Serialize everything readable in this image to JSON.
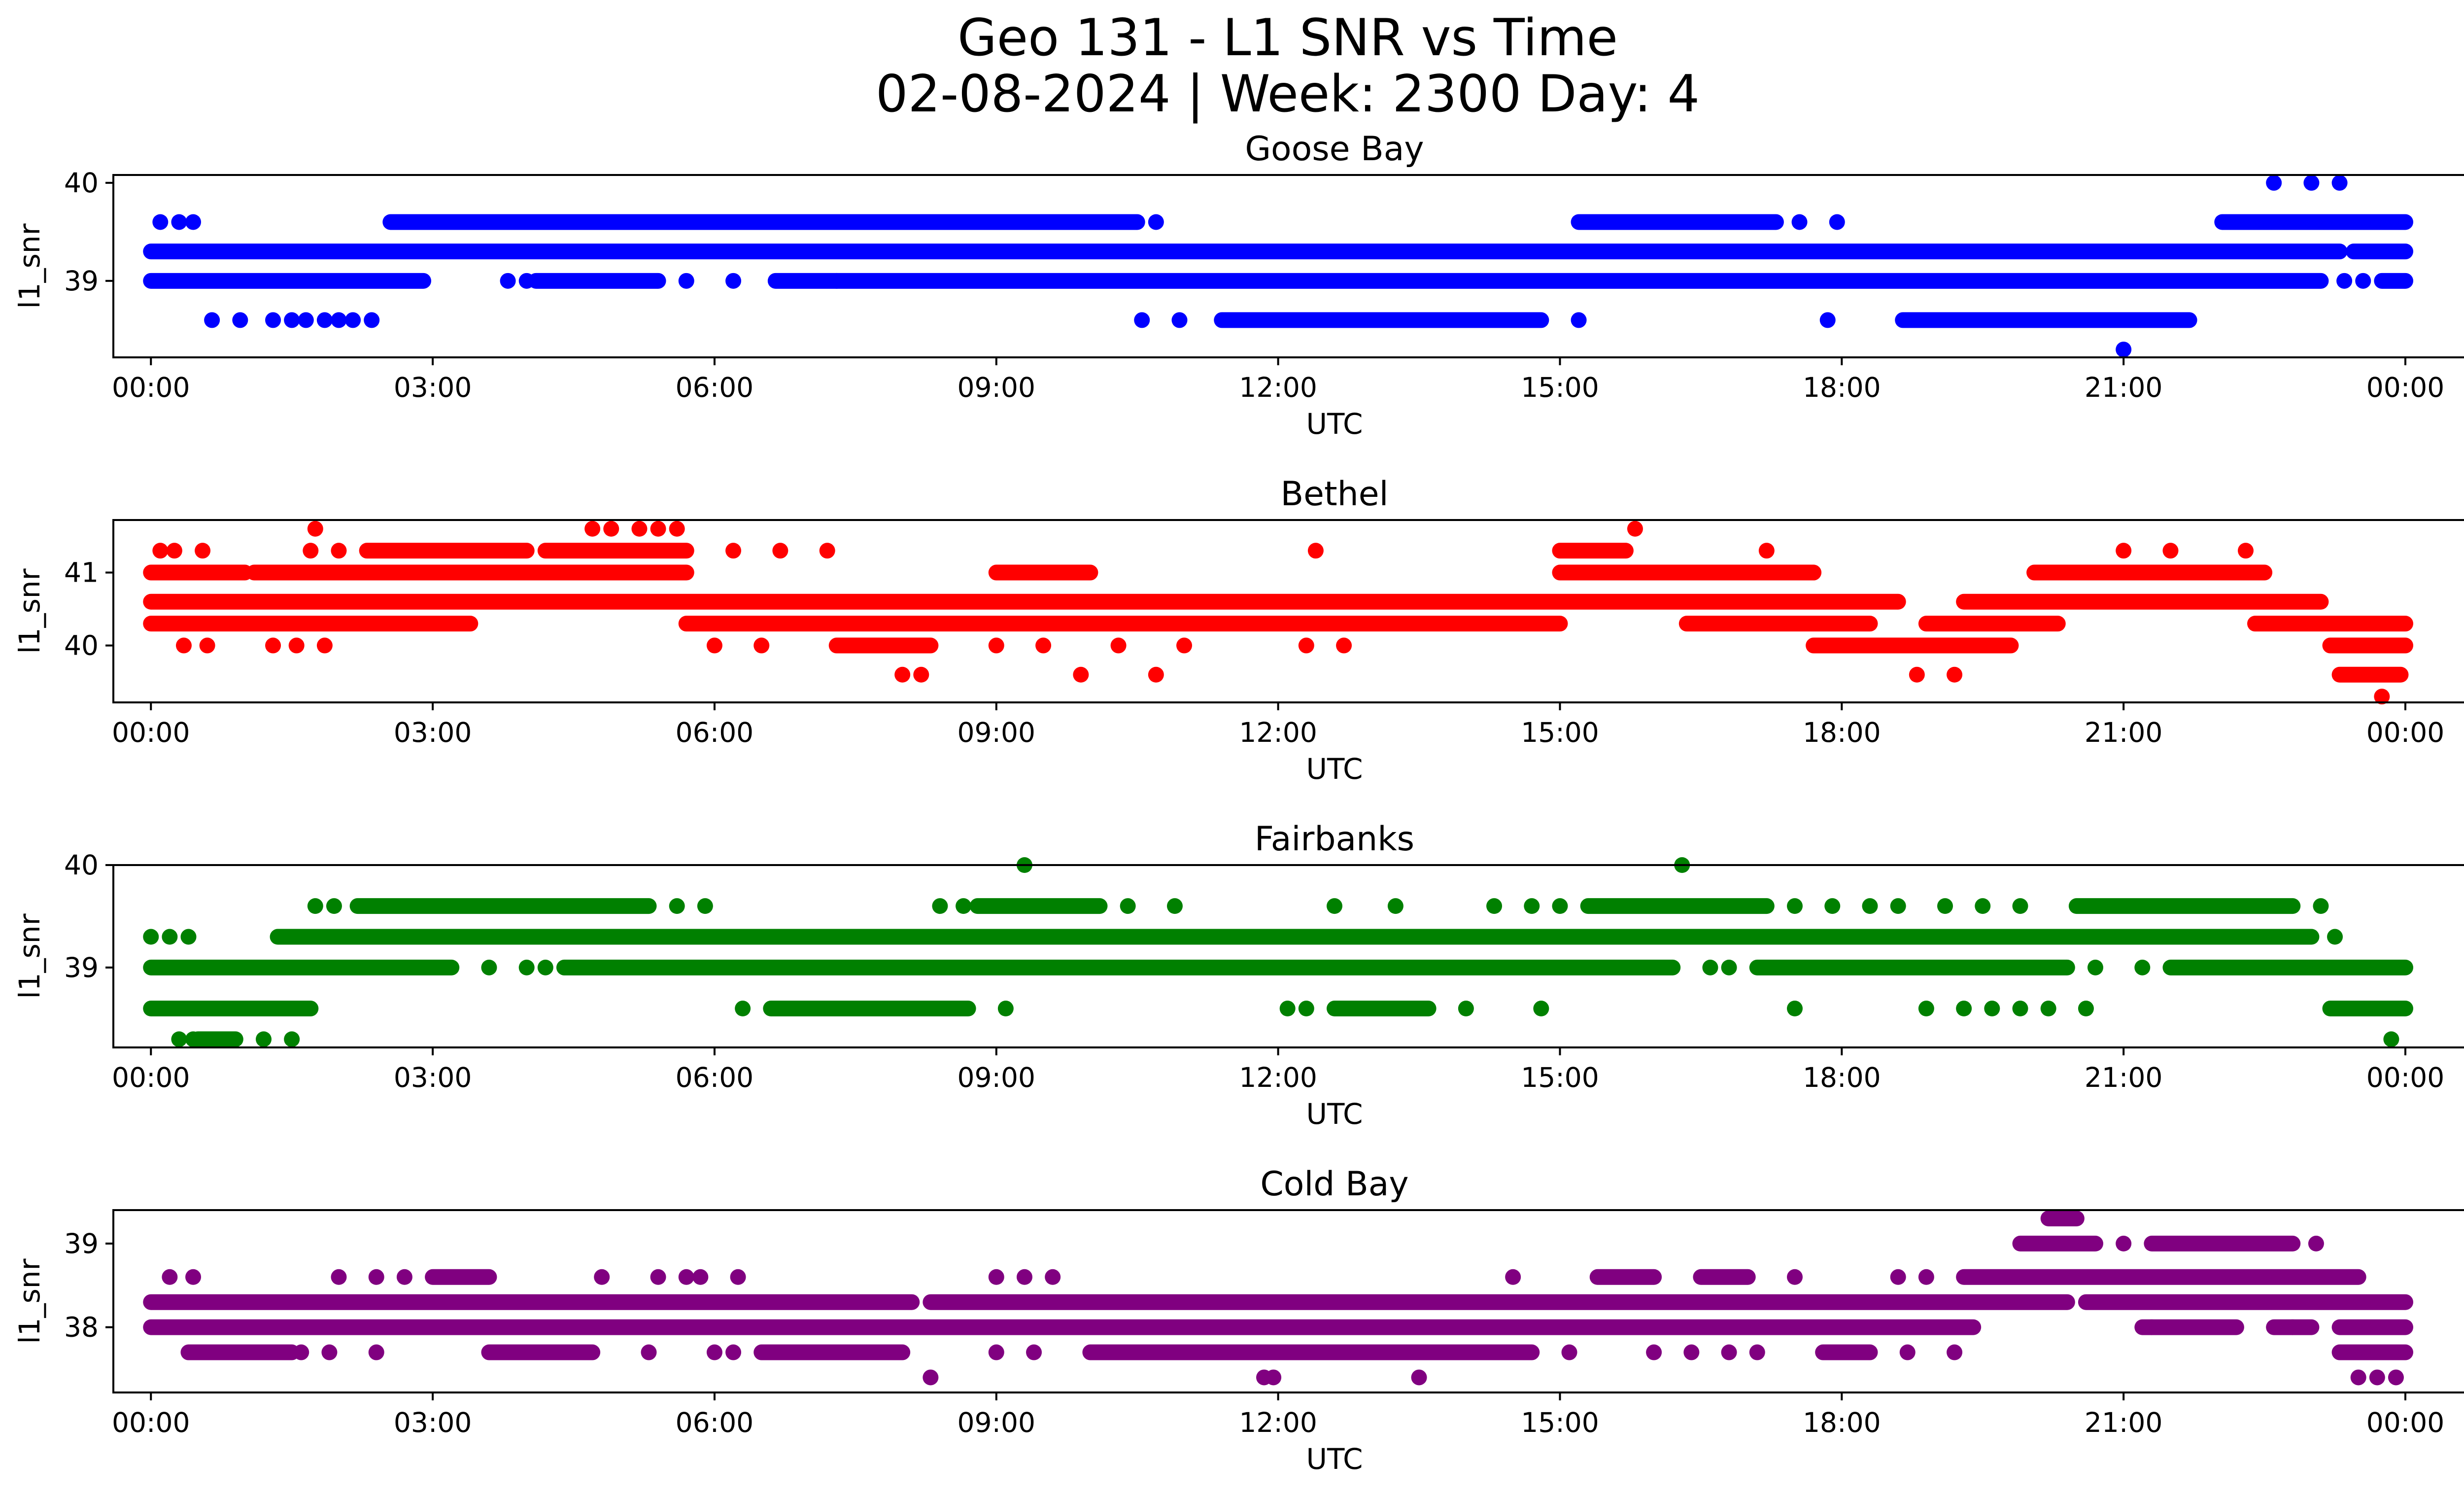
{
  "title": "Geo 131 - L1 SNR vs Time",
  "subtitle": "02-08-2024 | Week: 2300 Day: 4",
  "chart_data": [
    {
      "type": "scatter",
      "title": "Goose Bay",
      "color": "#0000ff",
      "xlabel": "UTC",
      "ylabel": "l1_snr",
      "xlim": [
        -0.4,
        25.6
      ],
      "ylim": [
        38.22,
        40.08
      ],
      "xticks": [
        0,
        3,
        6,
        9,
        12,
        15,
        18,
        21,
        24
      ],
      "xticklabels": [
        "00:00",
        "03:00",
        "06:00",
        "09:00",
        "12:00",
        "15:00",
        "18:00",
        "21:00",
        "00:00"
      ],
      "yticks": [
        39,
        40
      ],
      "yticklabels": [
        "39",
        "40"
      ],
      "bands": [
        {
          "y": 39.3,
          "segments": [
            [
              0,
              23.3
            ],
            [
              23.45,
              24
            ]
          ]
        },
        {
          "y": 39.6,
          "segments": [
            [
              2.55,
              10.5
            ],
            [
              15.2,
              17.3
            ],
            [
              22.05,
              24
            ]
          ]
        },
        {
          "y": 39.0,
          "segments": [
            [
              0,
              2.9
            ],
            [
              4.1,
              5.4
            ],
            [
              6.65,
              23.1
            ],
            [
              23.75,
              24
            ]
          ]
        },
        {
          "y": 38.6,
          "segments": [
            [
              11.4,
              14.8
            ],
            [
              18.65,
              21.7
            ]
          ]
        }
      ],
      "points": [
        {
          "x": 0.1,
          "y": 39.6
        },
        {
          "x": 0.3,
          "y": 39.6
        },
        {
          "x": 0.45,
          "y": 39.6
        },
        {
          "x": 10.7,
          "y": 39.6
        },
        {
          "x": 17.55,
          "y": 39.6
        },
        {
          "x": 17.95,
          "y": 39.6
        },
        {
          "x": 3.8,
          "y": 39.0
        },
        {
          "x": 4.0,
          "y": 39.0
        },
        {
          "x": 5.7,
          "y": 39.0
        },
        {
          "x": 6.2,
          "y": 39.0
        },
        {
          "x": 7.3,
          "y": 39.0
        },
        {
          "x": 23.35,
          "y": 39.0
        },
        {
          "x": 23.55,
          "y": 39.0
        },
        {
          "x": 0.65,
          "y": 38.6
        },
        {
          "x": 0.95,
          "y": 38.6
        },
        {
          "x": 1.3,
          "y": 38.6
        },
        {
          "x": 1.5,
          "y": 38.6
        },
        {
          "x": 1.65,
          "y": 38.6
        },
        {
          "x": 1.85,
          "y": 38.6
        },
        {
          "x": 2.0,
          "y": 38.6
        },
        {
          "x": 2.15,
          "y": 38.6
        },
        {
          "x": 2.35,
          "y": 38.6
        },
        {
          "x": 10.55,
          "y": 38.6
        },
        {
          "x": 10.95,
          "y": 38.6
        },
        {
          "x": 15.2,
          "y": 38.6
        },
        {
          "x": 17.85,
          "y": 38.6
        },
        {
          "x": 22.6,
          "y": 40.0
        },
        {
          "x": 23.0,
          "y": 40.0
        },
        {
          "x": 23.3,
          "y": 40.0
        },
        {
          "x": 21.0,
          "y": 38.3
        }
      ]
    },
    {
      "type": "scatter",
      "title": "Bethel",
      "color": "#ff0000",
      "xlabel": "UTC",
      "ylabel": "l1_snr",
      "xlim": [
        -0.4,
        25.6
      ],
      "ylim": [
        39.22,
        41.72
      ],
      "xticks": [
        0,
        3,
        6,
        9,
        12,
        15,
        18,
        21,
        24
      ],
      "xticklabels": [
        "00:00",
        "03:00",
        "06:00",
        "09:00",
        "12:00",
        "15:00",
        "18:00",
        "21:00",
        "00:00"
      ],
      "yticks": [
        40,
        41
      ],
      "yticklabels": [
        "40",
        "41"
      ],
      "bands": [
        {
          "y": 40.6,
          "segments": [
            [
              0,
              18.6
            ],
            [
              19.3,
              23.1
            ]
          ]
        },
        {
          "y": 41.0,
          "segments": [
            [
              0,
              1.0
            ],
            [
              1.1,
              5.7
            ],
            [
              9.0,
              10.0
            ],
            [
              15.0,
              17.7
            ],
            [
              20.05,
              22.5
            ]
          ]
        },
        {
          "y": 40.3,
          "segments": [
            [
              0,
              3.4
            ],
            [
              5.7,
              15.0
            ],
            [
              16.35,
              18.3
            ],
            [
              18.9,
              20.3
            ],
            [
              22.4,
              24
            ]
          ]
        },
        {
          "y": 41.3,
          "segments": [
            [
              2.3,
              4.0
            ],
            [
              4.2,
              5.7
            ],
            [
              15.0,
              15.7
            ]
          ]
        },
        {
          "y": 40.0,
          "segments": [
            [
              7.3,
              8.3
            ],
            [
              17.7,
              19.8
            ],
            [
              23.2,
              24
            ]
          ]
        },
        {
          "y": 39.6,
          "segments": [
            [
              23.3,
              23.95
            ]
          ]
        }
      ],
      "points": [
        {
          "x": 0.1,
          "y": 41.3
        },
        {
          "x": 0.25,
          "y": 41.3
        },
        {
          "x": 0.55,
          "y": 41.3
        },
        {
          "x": 1.7,
          "y": 41.3
        },
        {
          "x": 2.0,
          "y": 41.3
        },
        {
          "x": 6.2,
          "y": 41.3
        },
        {
          "x": 6.7,
          "y": 41.3
        },
        {
          "x": 7.2,
          "y": 41.3
        },
        {
          "x": 12.4,
          "y": 41.3
        },
        {
          "x": 17.2,
          "y": 41.3
        },
        {
          "x": 21.0,
          "y": 41.3
        },
        {
          "x": 21.5,
          "y": 41.3
        },
        {
          "x": 22.3,
          "y": 41.3
        },
        {
          "x": 1.75,
          "y": 41.6
        },
        {
          "x": 4.7,
          "y": 41.6
        },
        {
          "x": 4.9,
          "y": 41.6
        },
        {
          "x": 5.2,
          "y": 41.6
        },
        {
          "x": 5.4,
          "y": 41.6
        },
        {
          "x": 5.6,
          "y": 41.6
        },
        {
          "x": 15.8,
          "y": 41.6
        },
        {
          "x": 0.35,
          "y": 40.0
        },
        {
          "x": 0.6,
          "y": 40.0
        },
        {
          "x": 1.3,
          "y": 40.0
        },
        {
          "x": 1.55,
          "y": 40.0
        },
        {
          "x": 1.85,
          "y": 40.0
        },
        {
          "x": 6.0,
          "y": 40.0
        },
        {
          "x": 6.5,
          "y": 40.0
        },
        {
          "x": 9.0,
          "y": 40.0
        },
        {
          "x": 9.5,
          "y": 40.0
        },
        {
          "x": 10.3,
          "y": 40.0
        },
        {
          "x": 11.0,
          "y": 40.0
        },
        {
          "x": 12.3,
          "y": 40.0
        },
        {
          "x": 12.7,
          "y": 40.0
        },
        {
          "x": 8.0,
          "y": 39.6
        },
        {
          "x": 8.2,
          "y": 39.6
        },
        {
          "x": 9.9,
          "y": 39.6
        },
        {
          "x": 10.7,
          "y": 39.6
        },
        {
          "x": 18.8,
          "y": 39.6
        },
        {
          "x": 19.2,
          "y": 39.6
        },
        {
          "x": 23.75,
          "y": 39.3
        }
      ]
    },
    {
      "type": "scatter",
      "title": "Fairbanks",
      "color": "#008000",
      "xlabel": "UTC",
      "ylabel": "l1_snr",
      "xlim": [
        -0.4,
        25.6
      ],
      "ylim": [
        38.22,
        40.0
      ],
      "xticks": [
        0,
        3,
        6,
        9,
        12,
        15,
        18,
        21,
        24
      ],
      "xticklabels": [
        "00:00",
        "03:00",
        "06:00",
        "09:00",
        "12:00",
        "15:00",
        "18:00",
        "21:00",
        "00:00"
      ],
      "yticks": [
        39,
        40
      ],
      "yticklabels": [
        "39",
        "40"
      ],
      "bands": [
        {
          "y": 39.3,
          "segments": [
            [
              1.35,
              23.0
            ]
          ]
        },
        {
          "y": 39.0,
          "segments": [
            [
              0,
              3.2
            ],
            [
              4.4,
              16.2
            ],
            [
              17.1,
              20.4
            ],
            [
              21.5,
              24
            ]
          ]
        },
        {
          "y": 39.6,
          "segments": [
            [
              2.2,
              5.3
            ],
            [
              8.8,
              10.1
            ],
            [
              15.3,
              17.2
            ],
            [
              20.5,
              22.8
            ]
          ]
        },
        {
          "y": 38.6,
          "segments": [
            [
              0,
              1.7
            ],
            [
              6.6,
              8.7
            ],
            [
              12.6,
              13.6
            ],
            [
              23.2,
              24
            ]
          ]
        },
        {
          "y": 38.3,
          "segments": [
            [
              0.5,
              0.9
            ]
          ]
        }
      ],
      "points": [
        {
          "x": 0.0,
          "y": 39.3
        },
        {
          "x": 0.2,
          "y": 39.3
        },
        {
          "x": 0.4,
          "y": 39.3
        },
        {
          "x": 23.25,
          "y": 39.3
        },
        {
          "x": 1.75,
          "y": 39.6
        },
        {
          "x": 1.95,
          "y": 39.6
        },
        {
          "x": 5.6,
          "y": 39.6
        },
        {
          "x": 5.9,
          "y": 39.6
        },
        {
          "x": 8.4,
          "y": 39.6
        },
        {
          "x": 8.65,
          "y": 39.6
        },
        {
          "x": 10.4,
          "y": 39.6
        },
        {
          "x": 10.9,
          "y": 39.6
        },
        {
          "x": 12.6,
          "y": 39.6
        },
        {
          "x": 13.25,
          "y": 39.6
        },
        {
          "x": 14.3,
          "y": 39.6
        },
        {
          "x": 14.7,
          "y": 39.6
        },
        {
          "x": 15.0,
          "y": 39.6
        },
        {
          "x": 17.5,
          "y": 39.6
        },
        {
          "x": 17.9,
          "y": 39.6
        },
        {
          "x": 18.3,
          "y": 39.6
        },
        {
          "x": 18.6,
          "y": 39.6
        },
        {
          "x": 19.1,
          "y": 39.6
        },
        {
          "x": 19.5,
          "y": 39.6
        },
        {
          "x": 19.9,
          "y": 39.6
        },
        {
          "x": 23.1,
          "y": 39.6
        },
        {
          "x": 3.6,
          "y": 39.0
        },
        {
          "x": 4.0,
          "y": 39.0
        },
        {
          "x": 4.2,
          "y": 39.0
        },
        {
          "x": 16.6,
          "y": 39.0
        },
        {
          "x": 16.8,
          "y": 39.0
        },
        {
          "x": 20.7,
          "y": 39.0
        },
        {
          "x": 21.2,
          "y": 39.0
        },
        {
          "x": 6.3,
          "y": 38.6
        },
        {
          "x": 9.1,
          "y": 38.6
        },
        {
          "x": 12.1,
          "y": 38.6
        },
        {
          "x": 12.3,
          "y": 38.6
        },
        {
          "x": 14.0,
          "y": 38.6
        },
        {
          "x": 14.8,
          "y": 38.6
        },
        {
          "x": 17.5,
          "y": 38.6
        },
        {
          "x": 18.9,
          "y": 38.6
        },
        {
          "x": 19.3,
          "y": 38.6
        },
        {
          "x": 19.6,
          "y": 38.6
        },
        {
          "x": 19.9,
          "y": 38.6
        },
        {
          "x": 20.2,
          "y": 38.6
        },
        {
          "x": 20.6,
          "y": 38.6
        },
        {
          "x": 0.3,
          "y": 38.3
        },
        {
          "x": 0.45,
          "y": 38.3
        },
        {
          "x": 1.2,
          "y": 38.3
        },
        {
          "x": 1.5,
          "y": 38.3
        },
        {
          "x": 23.85,
          "y": 38.3
        },
        {
          "x": 9.3,
          "y": 40.0
        },
        {
          "x": 16.3,
          "y": 40.0
        }
      ]
    },
    {
      "type": "scatter",
      "title": "Cold Bay",
      "color": "#800080",
      "xlabel": "UTC",
      "ylabel": "l1_snr",
      "xlim": [
        -0.4,
        25.6
      ],
      "ylim": [
        37.22,
        39.4
      ],
      "xticks": [
        0,
        3,
        6,
        9,
        12,
        15,
        18,
        21,
        24
      ],
      "xticklabels": [
        "00:00",
        "03:00",
        "06:00",
        "09:00",
        "12:00",
        "15:00",
        "18:00",
        "21:00",
        "00:00"
      ],
      "yticks": [
        38,
        39
      ],
      "yticklabels": [
        "38",
        "39"
      ],
      "bands": [
        {
          "y": 38.0,
          "segments": [
            [
              0,
              19.4
            ],
            [
              21.2,
              22.2
            ],
            [
              22.6,
              23.0
            ],
            [
              23.3,
              24
            ]
          ]
        },
        {
          "y": 38.3,
          "segments": [
            [
              0,
              8.1
            ],
            [
              8.3,
              20.4
            ],
            [
              20.6,
              24
            ]
          ]
        },
        {
          "y": 37.7,
          "segments": [
            [
              0.4,
              1.5
            ],
            [
              3.6,
              4.7
            ],
            [
              6.5,
              8.0
            ],
            [
              10.0,
              14.7
            ],
            [
              17.8,
              18.3
            ],
            [
              23.3,
              24
            ]
          ]
        },
        {
          "y": 38.6,
          "segments": [
            [
              3.0,
              3.6
            ],
            [
              15.4,
              16.0
            ],
            [
              16.5,
              17.0
            ],
            [
              19.3,
              23.5
            ]
          ]
        },
        {
          "y": 39.0,
          "segments": [
            [
              19.9,
              20.7
            ],
            [
              21.3,
              22.8
            ]
          ]
        },
        {
          "y": 39.3,
          "segments": [
            [
              20.2,
              20.5
            ]
          ]
        }
      ],
      "points": [
        {
          "x": 0.2,
          "y": 38.6
        },
        {
          "x": 0.45,
          "y": 38.6
        },
        {
          "x": 2.0,
          "y": 38.6
        },
        {
          "x": 2.4,
          "y": 38.6
        },
        {
          "x": 2.7,
          "y": 38.6
        },
        {
          "x": 4.8,
          "y": 38.6
        },
        {
          "x": 5.4,
          "y": 38.6
        },
        {
          "x": 5.7,
          "y": 38.6
        },
        {
          "x": 5.85,
          "y": 38.6
        },
        {
          "x": 6.25,
          "y": 38.6
        },
        {
          "x": 9.0,
          "y": 38.6
        },
        {
          "x": 9.3,
          "y": 38.6
        },
        {
          "x": 9.6,
          "y": 38.6
        },
        {
          "x": 14.5,
          "y": 38.6
        },
        {
          "x": 17.5,
          "y": 38.6
        },
        {
          "x": 18.6,
          "y": 38.6
        },
        {
          "x": 18.9,
          "y": 38.6
        },
        {
          "x": 21.0,
          "y": 39.0
        },
        {
          "x": 23.05,
          "y": 39.0
        },
        {
          "x": 1.6,
          "y": 37.7
        },
        {
          "x": 1.9,
          "y": 37.7
        },
        {
          "x": 2.4,
          "y": 37.7
        },
        {
          "x": 5.3,
          "y": 37.7
        },
        {
          "x": 6.0,
          "y": 37.7
        },
        {
          "x": 6.2,
          "y": 37.7
        },
        {
          "x": 9.0,
          "y": 37.7
        },
        {
          "x": 9.4,
          "y": 37.7
        },
        {
          "x": 15.1,
          "y": 37.7
        },
        {
          "x": 16.0,
          "y": 37.7
        },
        {
          "x": 16.4,
          "y": 37.7
        },
        {
          "x": 16.8,
          "y": 37.7
        },
        {
          "x": 17.1,
          "y": 37.7
        },
        {
          "x": 18.7,
          "y": 37.7
        },
        {
          "x": 19.2,
          "y": 37.7
        },
        {
          "x": 21.3,
          "y": 38.0
        },
        {
          "x": 22.8,
          "y": 38.0
        },
        {
          "x": 8.3,
          "y": 37.4
        },
        {
          "x": 11.85,
          "y": 37.4
        },
        {
          "x": 11.95,
          "y": 37.4
        },
        {
          "x": 13.5,
          "y": 37.4
        },
        {
          "x": 23.5,
          "y": 37.4
        },
        {
          "x": 23.7,
          "y": 37.4
        },
        {
          "x": 23.9,
          "y": 37.4
        }
      ]
    }
  ]
}
